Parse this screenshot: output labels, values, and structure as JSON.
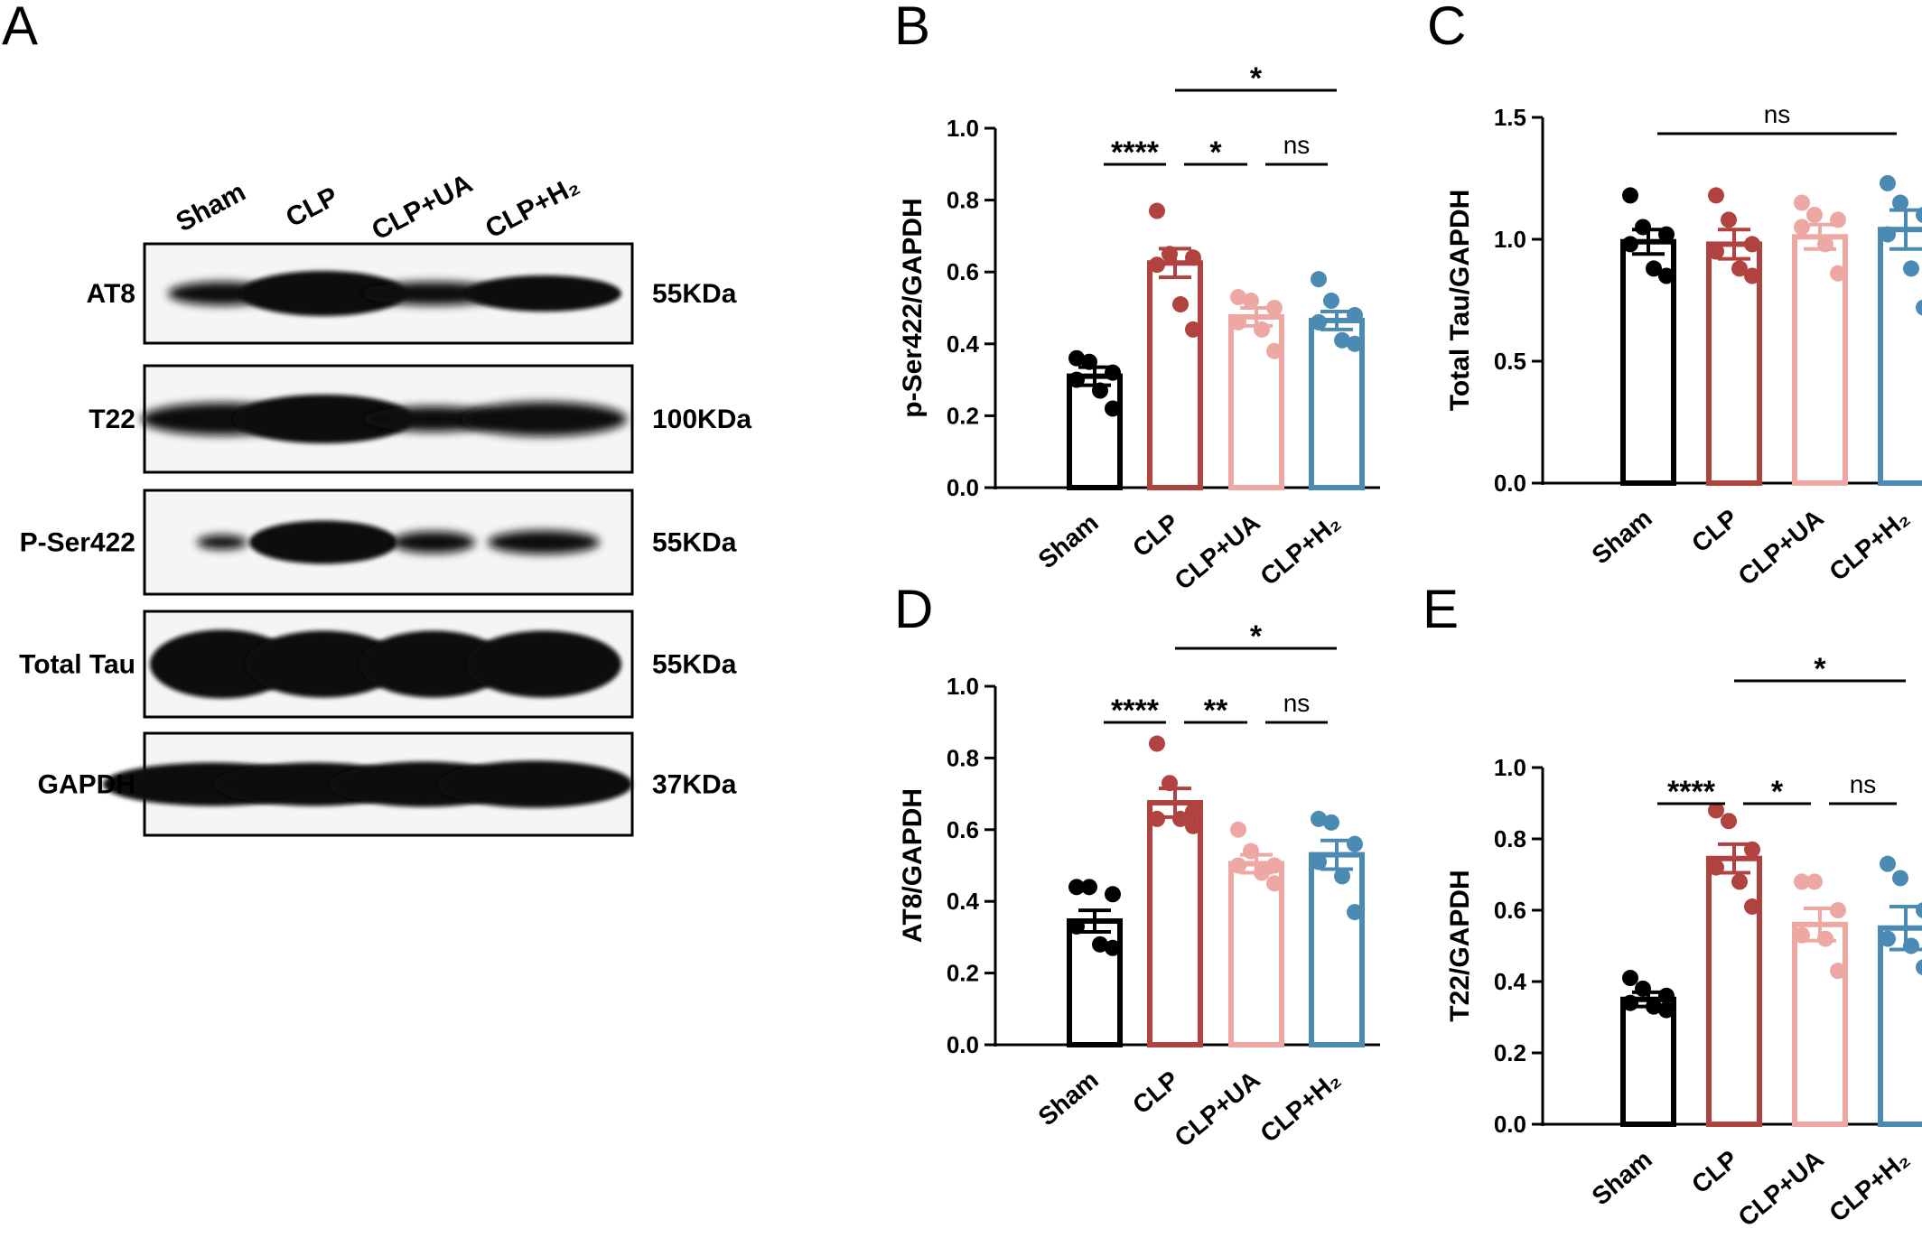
{
  "panel_labels": {
    "a": "A",
    "b": "B",
    "c": "C",
    "d": "D",
    "e": "E"
  },
  "colors": {
    "sham": "#000000",
    "clp": "#b0433f",
    "clp_ua": "#eda8a4",
    "clp_h2": "#4a8ab3"
  },
  "blot": {
    "lanes": [
      "Sham",
      "CLP",
      "CLP+UA",
      "CLP+H₂"
    ],
    "rows": [
      {
        "label": "AT8",
        "mw": "55KDa"
      },
      {
        "label": "T22",
        "mw": "100KDa"
      },
      {
        "label": "P-Ser422",
        "mw": "55KDa"
      },
      {
        "label": "Total Tau",
        "mw": "55KDa"
      },
      {
        "label": "GAPDH",
        "mw": "37KDa"
      }
    ]
  },
  "chart_data": [
    {
      "id": "B",
      "type": "bar",
      "categories": [
        "Sham",
        "CLP",
        "CLP+UA",
        "CLP+H₂"
      ],
      "ylabel": "p-Ser422/GAPDH",
      "ylim": [
        0,
        1.0
      ],
      "yticks": [
        "0.0",
        "0.2",
        "0.4",
        "0.6",
        "0.8",
        "1.0"
      ],
      "means": [
        0.31,
        0.625,
        0.475,
        0.465
      ],
      "sem": [
        0.025,
        0.04,
        0.025,
        0.025
      ],
      "points": [
        [
          0.36,
          0.35,
          0.32,
          0.3,
          0.27,
          0.22
        ],
        [
          0.77,
          0.65,
          0.64,
          0.62,
          0.51,
          0.44
        ],
        [
          0.53,
          0.52,
          0.5,
          0.46,
          0.44,
          0.38
        ],
        [
          0.58,
          0.52,
          0.48,
          0.46,
          0.41,
          0.4
        ]
      ],
      "significance": [
        {
          "from": 0,
          "to": 1,
          "label": "****",
          "level": 1
        },
        {
          "from": 1,
          "to": 2,
          "label": "*",
          "level": 1
        },
        {
          "from": 2,
          "to": 3,
          "label": "ns",
          "level": 1
        },
        {
          "from": 1,
          "to": 3,
          "label": "*",
          "level": 2
        }
      ]
    },
    {
      "id": "C",
      "type": "bar",
      "categories": [
        "Sham",
        "CLP",
        "CLP+UA",
        "CLP+H₂"
      ],
      "ylabel": "Total Tau/GAPDH",
      "ylim": [
        0,
        1.5
      ],
      "yticks": [
        "0.0",
        "0.5",
        "1.0",
        "1.5"
      ],
      "means": [
        0.99,
        0.98,
        1.01,
        1.04
      ],
      "sem": [
        0.05,
        0.06,
        0.05,
        0.08
      ],
      "points": [
        [
          1.18,
          1.05,
          1.02,
          0.98,
          0.88,
          0.85
        ],
        [
          1.18,
          1.08,
          0.98,
          0.95,
          0.88,
          0.85
        ],
        [
          1.15,
          1.1,
          1.08,
          1.05,
          0.98,
          0.86
        ],
        [
          1.23,
          1.15,
          1.1,
          1.02,
          0.88,
          0.72
        ]
      ],
      "significance": [
        {
          "from": 0,
          "to": 3,
          "label": "ns",
          "level": 1
        }
      ]
    },
    {
      "id": "D",
      "type": "bar",
      "categories": [
        "Sham",
        "CLP",
        "CLP+UA",
        "CLP+H₂"
      ],
      "ylabel": "AT8/GAPDH",
      "ylim": [
        0,
        1.0
      ],
      "yticks": [
        "0.0",
        "0.2",
        "0.4",
        "0.6",
        "0.8",
        "1.0"
      ],
      "means": [
        0.345,
        0.675,
        0.505,
        0.53
      ],
      "sem": [
        0.03,
        0.04,
        0.025,
        0.04
      ],
      "points": [
        [
          0.44,
          0.44,
          0.42,
          0.33,
          0.28,
          0.27
        ],
        [
          0.84,
          0.73,
          0.65,
          0.63,
          0.63,
          0.61
        ],
        [
          0.6,
          0.54,
          0.5,
          0.5,
          0.48,
          0.45
        ],
        [
          0.63,
          0.62,
          0.56,
          0.51,
          0.47,
          0.37
        ]
      ],
      "significance": [
        {
          "from": 0,
          "to": 1,
          "label": "****",
          "level": 1
        },
        {
          "from": 1,
          "to": 2,
          "label": "**",
          "level": 1
        },
        {
          "from": 2,
          "to": 3,
          "label": "ns",
          "level": 1
        },
        {
          "from": 1,
          "to": 3,
          "label": "*",
          "level": 2
        }
      ]
    },
    {
      "id": "E",
      "type": "bar",
      "categories": [
        "Sham",
        "CLP",
        "CLP+UA",
        "CLP+H₂"
      ],
      "ylabel": "T22/GAPDH",
      "ylim": [
        0,
        1.0
      ],
      "yticks": [
        "0.0",
        "0.2",
        "0.4",
        "0.6",
        "0.8",
        "1.0"
      ],
      "means": [
        0.35,
        0.745,
        0.56,
        0.55
      ],
      "sem": [
        0.02,
        0.04,
        0.045,
        0.06
      ],
      "points": [
        [
          0.41,
          0.38,
          0.36,
          0.34,
          0.33,
          0.32
        ],
        [
          0.88,
          0.85,
          0.77,
          0.72,
          0.68,
          0.61
        ],
        [
          0.68,
          0.68,
          0.6,
          0.53,
          0.52,
          0.43
        ],
        [
          0.73,
          0.69,
          0.6,
          0.52,
          0.5,
          0.44
        ]
      ],
      "significance": [
        {
          "from": 0,
          "to": 1,
          "label": "****",
          "level": 1
        },
        {
          "from": 1,
          "to": 2,
          "label": "*",
          "level": 1
        },
        {
          "from": 2,
          "to": 3,
          "label": "ns",
          "level": 1
        },
        {
          "from": 1,
          "to": 3,
          "label": "*",
          "level": 2
        }
      ]
    }
  ]
}
